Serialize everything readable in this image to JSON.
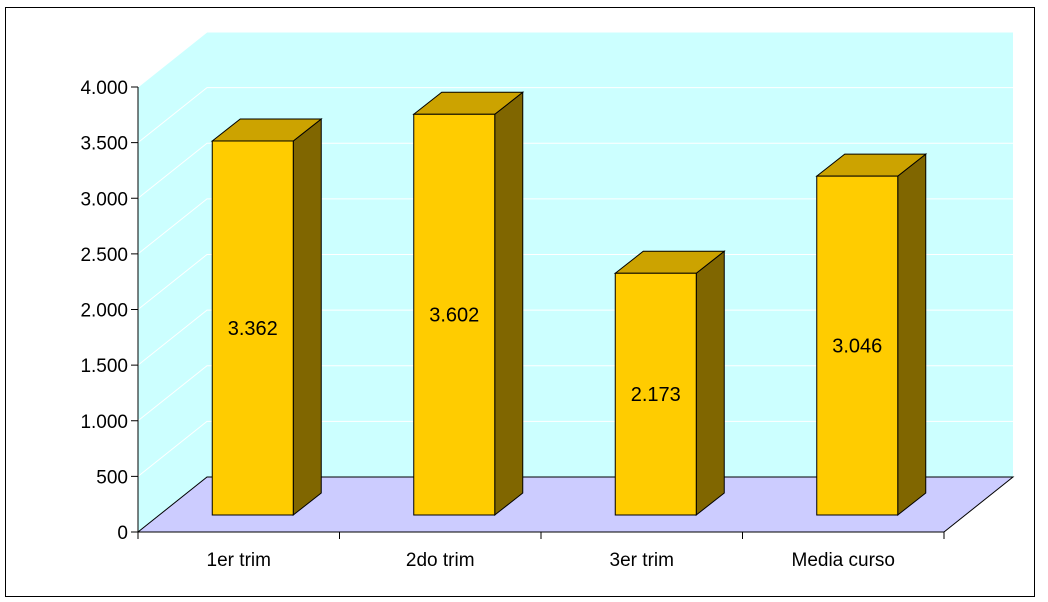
{
  "chart_data": {
    "type": "bar",
    "style": "3d-column",
    "categories": [
      "1er trim",
      "2do trim",
      "3er trim",
      "Media curso"
    ],
    "values": [
      3362,
      3602,
      2173,
      3046
    ],
    "data_labels": [
      "3.362",
      "3.602",
      "2.173",
      "3.046"
    ],
    "title": "",
    "xlabel": "",
    "ylabel": "",
    "ylim": [
      0,
      4000
    ],
    "yticks": [
      0,
      500,
      1000,
      1500,
      2000,
      2500,
      3000,
      3500,
      4000
    ],
    "ytick_labels": [
      "0",
      "500",
      "1.000",
      "1.500",
      "2.000",
      "2.500",
      "3.000",
      "3.500",
      "4.000"
    ],
    "grid": true,
    "legend": "none",
    "colors": {
      "bar_front": "#FFCC00",
      "bar_top": "#CCA300",
      "bar_side": "#806600",
      "back_wall": "#CCFFFF",
      "side_wall": "#CCFFFF",
      "floor": "#CCCCFF",
      "gridline": "#ffffff",
      "outline": "#000000"
    }
  }
}
